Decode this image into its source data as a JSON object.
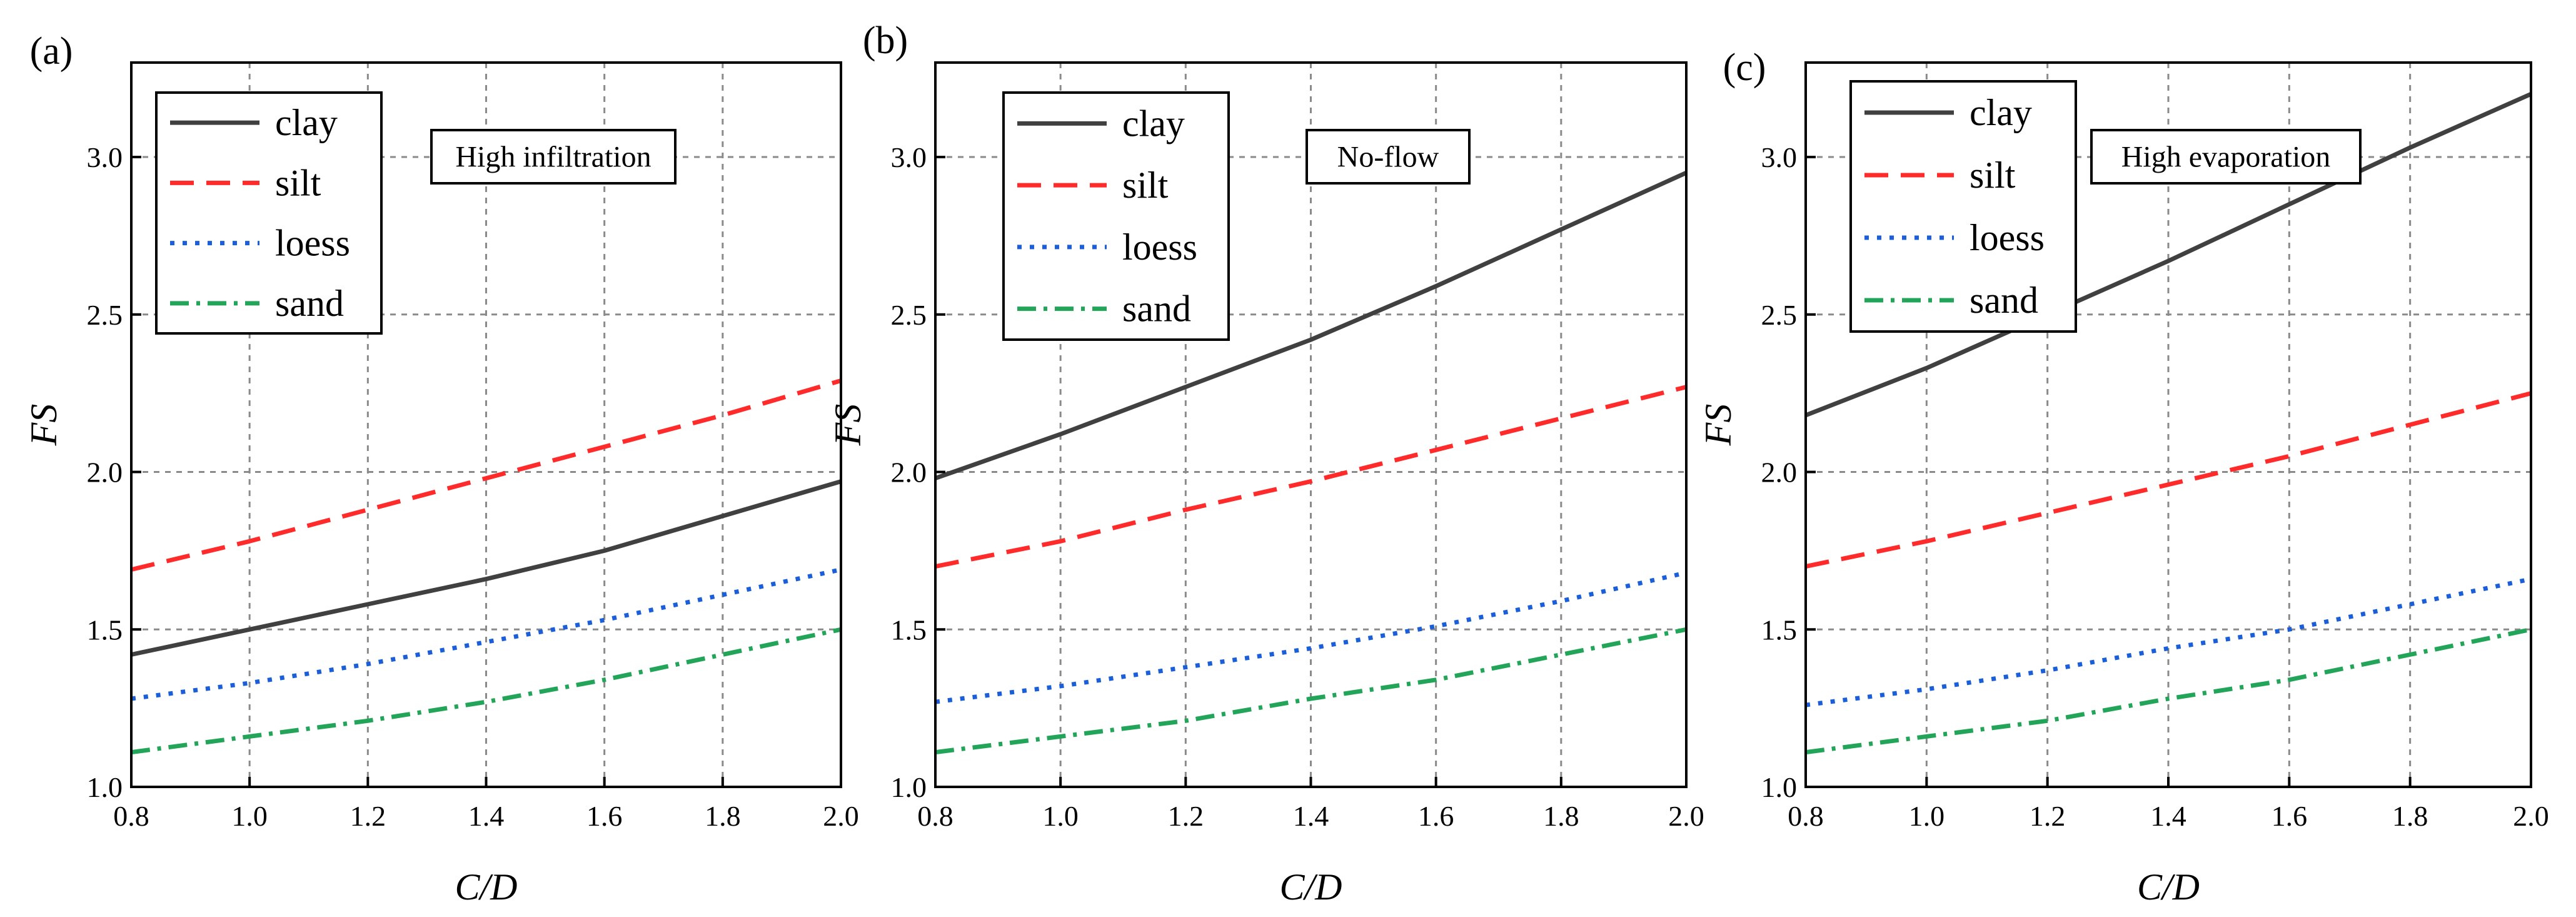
{
  "figure": {
    "title": ""
  },
  "chart_data": [
    {
      "type": "line",
      "panel_label": "(a)",
      "annotation": "High infiltration",
      "xlabel": "C/D",
      "ylabel": "FS",
      "xlim": [
        0.8,
        2.0
      ],
      "ylim": [
        1.0,
        3.3
      ],
      "xticks": [
        0.8,
        1.0,
        1.2,
        1.4,
        1.6,
        1.8,
        2.0
      ],
      "yticks": [
        1.0,
        1.5,
        2.0,
        2.5,
        3.0
      ],
      "xtick_labels": [
        "0.8",
        "1.0",
        "1.2",
        "1.4",
        "1.6",
        "1.8",
        "2.0"
      ],
      "ytick_labels": [
        "1.0",
        "1.5",
        "2.0",
        "2.5",
        "3.0"
      ],
      "grid": true,
      "legend_position": "top-left",
      "x": [
        0.8,
        1.0,
        1.2,
        1.4,
        1.6,
        1.8,
        2.0
      ],
      "series": [
        {
          "name": "clay",
          "color": "#404040",
          "dash": "solid",
          "values": [
            1.42,
            1.5,
            1.58,
            1.66,
            1.75,
            1.86,
            1.97
          ]
        },
        {
          "name": "silt",
          "color": "#ff2a2a",
          "dash": "dashed",
          "values": [
            1.69,
            1.78,
            1.88,
            1.98,
            2.08,
            2.18,
            2.29
          ]
        },
        {
          "name": "loess",
          "color": "#1a5fd8",
          "dash": "dotted",
          "values": [
            1.28,
            1.33,
            1.39,
            1.46,
            1.53,
            1.61,
            1.69
          ]
        },
        {
          "name": "sand",
          "color": "#22a559",
          "dash": "dashdot",
          "values": [
            1.11,
            1.16,
            1.21,
            1.27,
            1.34,
            1.42,
            1.5
          ]
        }
      ]
    },
    {
      "type": "line",
      "panel_label": "(b)",
      "annotation": "No-flow",
      "xlabel": "C/D",
      "ylabel": "FS",
      "xlim": [
        0.8,
        2.0
      ],
      "ylim": [
        1.0,
        3.3
      ],
      "xticks": [
        0.8,
        1.0,
        1.2,
        1.4,
        1.6,
        1.8,
        2.0
      ],
      "yticks": [
        1.0,
        1.5,
        2.0,
        2.5,
        3.0
      ],
      "xtick_labels": [
        "0.8",
        "1.0",
        "1.2",
        "1.4",
        "1.6",
        "1.8",
        "2.0"
      ],
      "ytick_labels": [
        "1.0",
        "1.5",
        "2.0",
        "2.5",
        "3.0"
      ],
      "grid": true,
      "legend_position": "top-left",
      "x": [
        0.8,
        1.0,
        1.2,
        1.4,
        1.6,
        1.8,
        2.0
      ],
      "series": [
        {
          "name": "clay",
          "color": "#404040",
          "dash": "solid",
          "values": [
            1.98,
            2.12,
            2.27,
            2.42,
            2.59,
            2.77,
            2.95
          ]
        },
        {
          "name": "silt",
          "color": "#ff2a2a",
          "dash": "dashed",
          "values": [
            1.7,
            1.78,
            1.88,
            1.97,
            2.07,
            2.17,
            2.27
          ]
        },
        {
          "name": "loess",
          "color": "#1a5fd8",
          "dash": "dotted",
          "values": [
            1.27,
            1.32,
            1.38,
            1.44,
            1.51,
            1.59,
            1.68
          ]
        },
        {
          "name": "sand",
          "color": "#22a559",
          "dash": "dashdot",
          "values": [
            1.11,
            1.16,
            1.21,
            1.28,
            1.34,
            1.42,
            1.5
          ]
        }
      ]
    },
    {
      "type": "line",
      "panel_label": "(c)",
      "annotation": "High evaporation",
      "xlabel": "C/D",
      "ylabel": "FS",
      "xlim": [
        0.8,
        2.0
      ],
      "ylim": [
        1.0,
        3.3
      ],
      "xticks": [
        0.8,
        1.0,
        1.2,
        1.4,
        1.6,
        1.8,
        2.0
      ],
      "yticks": [
        1.0,
        1.5,
        2.0,
        2.5,
        3.0
      ],
      "xtick_labels": [
        "0.8",
        "1.0",
        "1.2",
        "1.4",
        "1.6",
        "1.8",
        "2.0"
      ],
      "ytick_labels": [
        "1.0",
        "1.5",
        "2.0",
        "2.5",
        "3.0"
      ],
      "grid": true,
      "legend_position": "top-left",
      "x": [
        0.8,
        1.0,
        1.2,
        1.4,
        1.6,
        1.8,
        2.0
      ],
      "series": [
        {
          "name": "clay",
          "color": "#404040",
          "dash": "solid",
          "values": [
            2.18,
            2.33,
            2.5,
            2.67,
            2.85,
            3.03,
            3.2
          ]
        },
        {
          "name": "silt",
          "color": "#ff2a2a",
          "dash": "dashed",
          "values": [
            1.7,
            1.78,
            1.87,
            1.96,
            2.05,
            2.15,
            2.25
          ]
        },
        {
          "name": "loess",
          "color": "#1a5fd8",
          "dash": "dotted",
          "values": [
            1.26,
            1.31,
            1.37,
            1.44,
            1.5,
            1.58,
            1.66
          ]
        },
        {
          "name": "sand",
          "color": "#22a559",
          "dash": "dashdot",
          "values": [
            1.11,
            1.16,
            1.21,
            1.28,
            1.34,
            1.42,
            1.5
          ]
        }
      ]
    }
  ]
}
